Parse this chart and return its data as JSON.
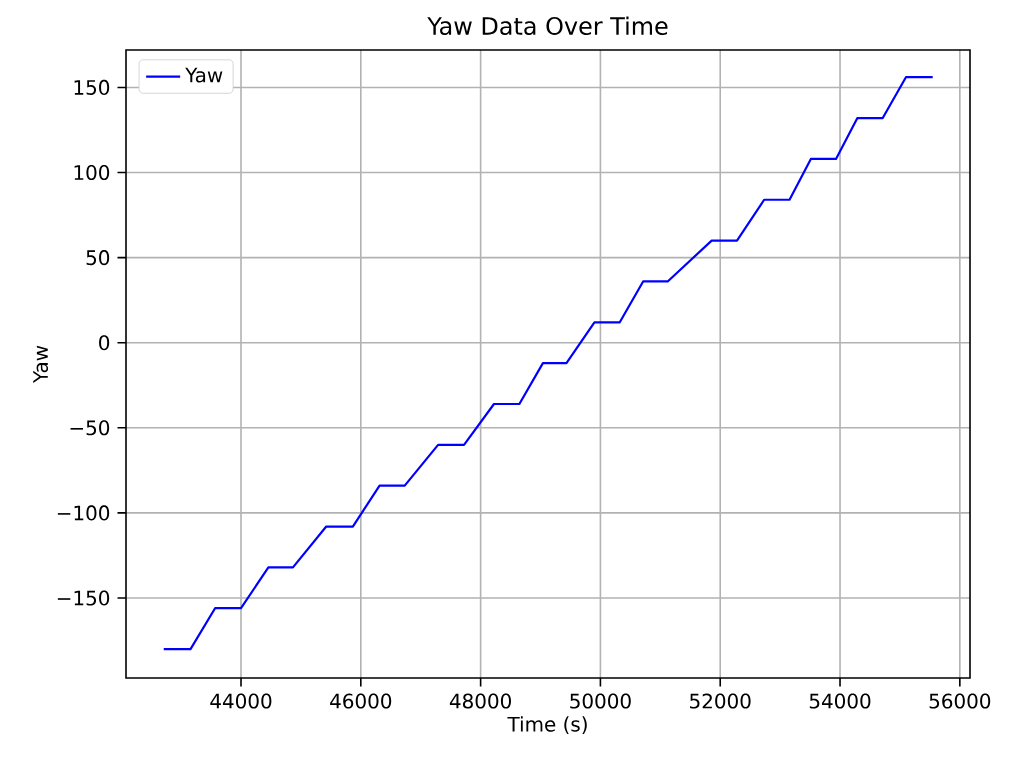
{
  "chart_data": {
    "type": "line",
    "title": "Yaw Data Over Time",
    "xlabel": "Time (s)",
    "ylabel": "Yaw",
    "x": [
      42710,
      43157,
      43567,
      44000,
      44457,
      44867,
      45423,
      45867,
      46313,
      46733,
      47290,
      47723,
      48223,
      48647,
      49040,
      49433,
      49900,
      50323,
      50713,
      51123,
      51857,
      52280,
      52733,
      53157,
      53513,
      53933,
      54290,
      54713,
      55100,
      55547
    ],
    "series": [
      {
        "name": "Yaw",
        "color": "#0000ff",
        "values": [
          -180,
          -180,
          -156,
          -156,
          -132,
          -132,
          -108,
          -108,
          -84,
          -84,
          -60,
          -60,
          -36,
          -36,
          -12,
          -12,
          12,
          12,
          36,
          36,
          60,
          60,
          84,
          84,
          108,
          108,
          132,
          132,
          156,
          156
        ]
      }
    ],
    "xlim": [
      42080,
      56170
    ],
    "ylim": [
      -197,
      172
    ],
    "xticks": [
      44000,
      46000,
      48000,
      50000,
      52000,
      54000,
      56000
    ],
    "yticks": [
      {
        "value": -150,
        "label": "−150"
      },
      {
        "value": -100,
        "label": "−100"
      },
      {
        "value": -50,
        "label": "−50"
      },
      0,
      50,
      100,
      150
    ],
    "grid": true,
    "legend": "top left",
    "line_style": "solid",
    "marker": "none"
  }
}
